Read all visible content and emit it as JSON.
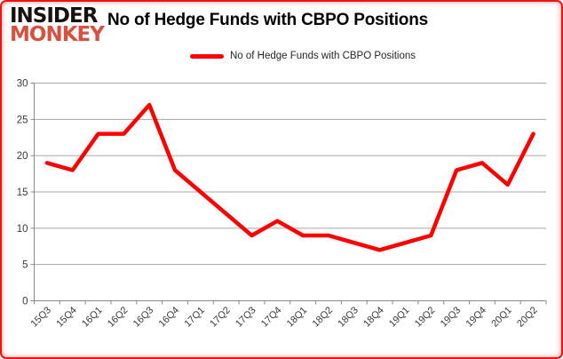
{
  "brand": {
    "line1": "INSIDER",
    "line2": "MONKEY",
    "monkey_color": "#d9503f"
  },
  "header": {
    "title": "No of Hedge Funds with CBPO Positions"
  },
  "legend": {
    "label": "No of Hedge Funds with CBPO Positions",
    "swatch_color": "#ff0000"
  },
  "chart_data": {
    "type": "line",
    "title": "No of Hedge Funds with CBPO Positions",
    "categories": [
      "15Q3",
      "15Q4",
      "16Q1",
      "16Q2",
      "16Q3",
      "16Q4",
      "17Q1",
      "17Q2",
      "17Q3",
      "17Q4",
      "18Q1",
      "18Q2",
      "18Q3",
      "18Q4",
      "19Q1",
      "19Q2",
      "19Q3",
      "19Q4",
      "20Q1",
      "20Q2"
    ],
    "series": [
      {
        "name": "No of Hedge Funds with CBPO Positions",
        "color": "#ff0000",
        "values": [
          19,
          18,
          23,
          23,
          27,
          18,
          15,
          12,
          9,
          11,
          9,
          9,
          8,
          7,
          8,
          9,
          18,
          19,
          16,
          23
        ]
      }
    ],
    "xlabel": "",
    "ylabel": "",
    "ylim": [
      0,
      30
    ],
    "yticks": [
      0,
      5,
      10,
      15,
      20,
      25,
      30
    ],
    "grid": true,
    "legend_position": "top-center",
    "x_label_rotation": -45,
    "colors": {
      "gridline": "#a6a6a6",
      "axis": "#898989",
      "tick_label": "#3a3a3a"
    }
  }
}
